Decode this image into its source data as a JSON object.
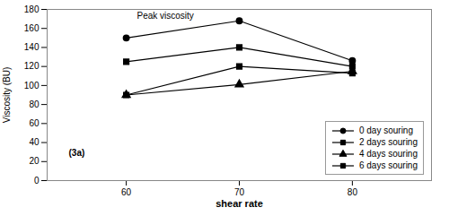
{
  "chart_data": {
    "type": "line",
    "xlabel": "shear rate",
    "ylabel": "Viscosity (BU)",
    "x": [
      60,
      70,
      80
    ],
    "series": [
      {
        "name": "0 day souring",
        "values": [
          150,
          168,
          126
        ],
        "marker": "circle",
        "color": "#000000"
      },
      {
        "name": "2 days souring",
        "values": [
          125,
          140,
          120
        ],
        "marker": "square",
        "color": "#000000"
      },
      {
        "name": "4 days souring",
        "values": [
          90,
          101,
          115
        ],
        "marker": "triangle",
        "color": "#000000"
      },
      {
        "name": "6 days souring",
        "values": [
          90,
          120,
          113
        ],
        "marker": "square",
        "color": "#000000"
      }
    ],
    "xlim": [
      53,
      87
    ],
    "xticks": [
      60,
      70,
      80
    ],
    "ylim": [
      0,
      180
    ],
    "yticks": [
      0,
      20,
      40,
      60,
      80,
      100,
      120,
      140,
      160,
      180
    ],
    "annotations": [
      "Peak viscosity",
      "(3a)"
    ],
    "legend": "lower right",
    "grid": false
  }
}
